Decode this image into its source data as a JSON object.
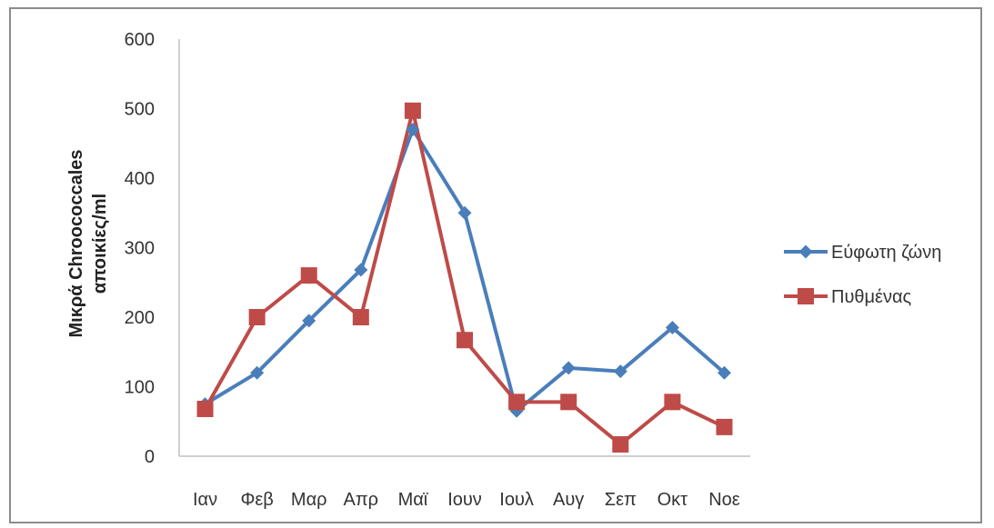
{
  "chart_data": {
    "type": "line",
    "categories": [
      "Ιαν",
      "Φεβ",
      "Μαρ",
      "Απρ",
      "Μαϊ",
      "Ιουν",
      "Ιουλ",
      "Αυγ",
      "Σεπ",
      "Οκτ",
      "Νοε"
    ],
    "series": [
      {
        "name": "Εύφωτη ζώνη",
        "color": "#4a7ebb",
        "marker": "diamond",
        "values": [
          75,
          120,
          195,
          268,
          470,
          350,
          65,
          127,
          122,
          185,
          120
        ]
      },
      {
        "name": "Πυθμένας",
        "color": "#be4b48",
        "marker": "square",
        "values": [
          68,
          200,
          260,
          200,
          497,
          167,
          78,
          78,
          17,
          78,
          42
        ]
      }
    ],
    "ylabel_line1": "Μικρά Chroococcales",
    "ylabel_line2": "αποικίες/ml",
    "ylim": [
      0,
      600
    ],
    "yticks": [
      0,
      100,
      200,
      300,
      400,
      500,
      600
    ],
    "grid": false,
    "legend_position": "right"
  }
}
